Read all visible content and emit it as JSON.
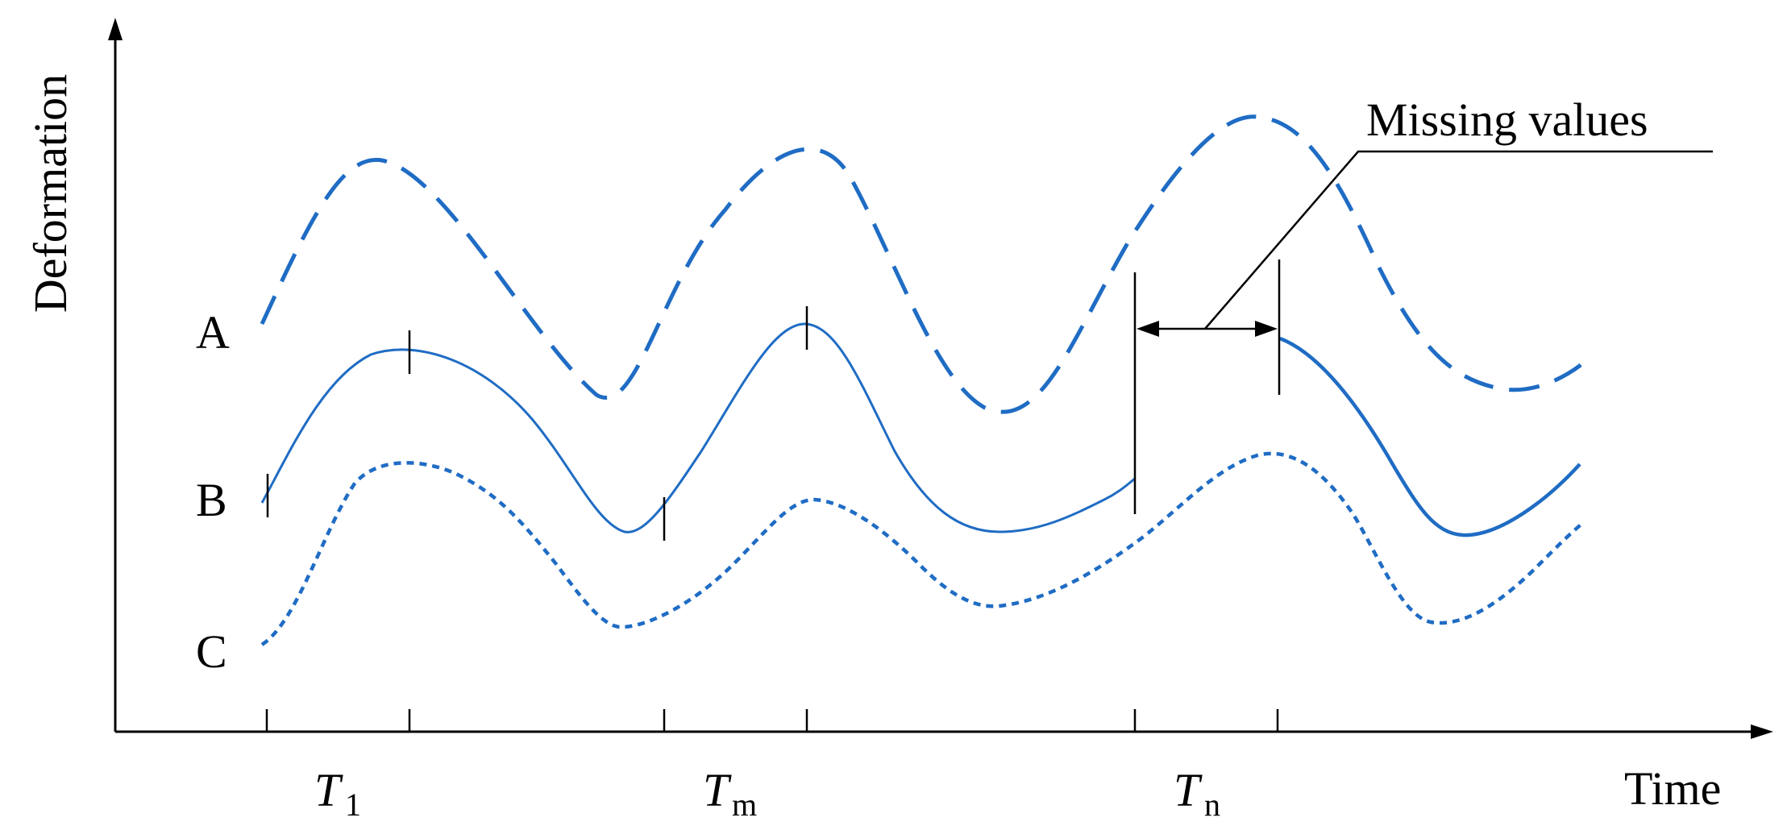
{
  "axes": {
    "y_label": "Deformation",
    "x_label": "Time"
  },
  "series": {
    "a": {
      "label": "A",
      "style": "dashed"
    },
    "b": {
      "label": "B",
      "style": "solid"
    },
    "c": {
      "label": "C",
      "style": "dotted"
    }
  },
  "ticks": {
    "t1": {
      "main": "T",
      "sub": "1"
    },
    "tm": {
      "main": "T",
      "sub": "m"
    },
    "tn": {
      "main": "T",
      "sub": "n"
    }
  },
  "annotation": {
    "text": "Missing values"
  },
  "colors": {
    "curve": "#1f6cc4",
    "axis": "#000000"
  }
}
